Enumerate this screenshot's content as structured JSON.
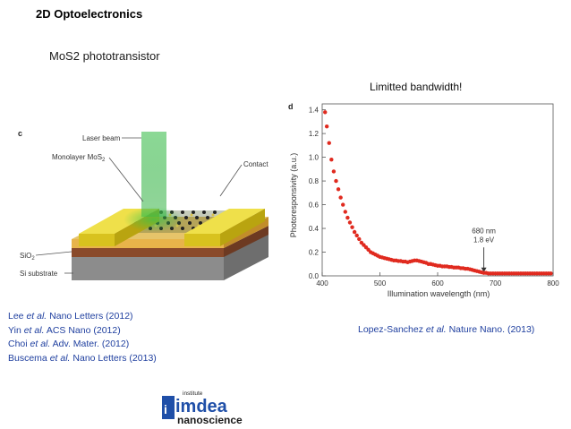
{
  "slide": {
    "title": "2D Optoelectronics",
    "subtitle": "MoS2 phototransistor",
    "note": "Limitted bandwidth!"
  },
  "device_figure": {
    "panel_label": "c",
    "labels": {
      "laser": "Laser beam",
      "monolayer": "Monolayer MoS",
      "monolayer_sub": "2",
      "contact": "Contact",
      "sio2": "SiO",
      "sio2_sub": "2",
      "substrate": "Si substrate"
    }
  },
  "references_left": [
    {
      "author": "Lee",
      "etal": "et al.",
      "journal": "Nano Letters (2012)"
    },
    {
      "author": "Yin",
      "etal": "et al.",
      "journal": "ACS Nano (2012)"
    },
    {
      "author": "Choi",
      "etal": "et al.",
      "journal": "Adv. Mater. (2012)"
    },
    {
      "author": "Buscema",
      "etal": "et al.",
      "journal": "Nano Letters (2013)"
    }
  ],
  "reference_right": {
    "author": "Lopez-Sanchez",
    "etal": "et al.",
    "journal": "Nature Nano. (2013)"
  },
  "logo": {
    "small": "institute",
    "brand": "imdea",
    "sub": "nanoscience"
  },
  "chart_data": {
    "type": "scatter",
    "panel_label": "d",
    "xlabel": "Illumination wavelength (nm)",
    "ylabel": "Photoresponsivity (a.u.)",
    "xlim": [
      400,
      800
    ],
    "ylim": [
      0,
      1.45
    ],
    "xticks": [
      400,
      500,
      600,
      700,
      800
    ],
    "yticks": [
      0.0,
      0.2,
      0.4,
      0.6,
      0.8,
      1.0,
      1.2,
      1.4
    ],
    "marker_color": "#e02a1f",
    "annotation": {
      "line1": "680 nm",
      "line2": "1.8 eV",
      "x": 680
    },
    "x": [
      405,
      408,
      412,
      416,
      420,
      424,
      428,
      432,
      436,
      440,
      444,
      448,
      452,
      456,
      460,
      464,
      468,
      472,
      476,
      480,
      484,
      488,
      492,
      496,
      500,
      504,
      508,
      512,
      516,
      520,
      524,
      528,
      532,
      536,
      540,
      544,
      548,
      552,
      556,
      560,
      564,
      568,
      572,
      576,
      580,
      584,
      588,
      592,
      596,
      600,
      604,
      608,
      612,
      616,
      620,
      624,
      628,
      632,
      636,
      640,
      644,
      648,
      652,
      656,
      660,
      664,
      668,
      672,
      676,
      680,
      684,
      688,
      692,
      696,
      700,
      704,
      708,
      712,
      716,
      720,
      724,
      728,
      732,
      736,
      740,
      744,
      748,
      752,
      756,
      760,
      764,
      768,
      772,
      776,
      780,
      784,
      788,
      792,
      796
    ],
    "y": [
      1.38,
      1.26,
      1.12,
      0.98,
      0.88,
      0.8,
      0.73,
      0.66,
      0.6,
      0.54,
      0.49,
      0.45,
      0.41,
      0.37,
      0.34,
      0.31,
      0.28,
      0.26,
      0.24,
      0.22,
      0.2,
      0.19,
      0.18,
      0.17,
      0.16,
      0.155,
      0.15,
      0.145,
      0.14,
      0.135,
      0.13,
      0.13,
      0.125,
      0.125,
      0.12,
      0.12,
      0.115,
      0.12,
      0.125,
      0.13,
      0.13,
      0.125,
      0.12,
      0.115,
      0.11,
      0.1,
      0.1,
      0.095,
      0.09,
      0.085,
      0.085,
      0.08,
      0.08,
      0.08,
      0.075,
      0.075,
      0.07,
      0.07,
      0.07,
      0.065,
      0.065,
      0.06,
      0.06,
      0.055,
      0.05,
      0.045,
      0.04,
      0.035,
      0.03,
      0.025,
      0.025,
      0.02,
      0.02,
      0.02,
      0.02,
      0.02,
      0.02,
      0.02,
      0.02,
      0.02,
      0.02,
      0.02,
      0.02,
      0.02,
      0.02,
      0.02,
      0.02,
      0.02,
      0.02,
      0.02,
      0.02,
      0.02,
      0.02,
      0.02,
      0.02,
      0.02,
      0.02,
      0.02,
      0.02
    ]
  }
}
